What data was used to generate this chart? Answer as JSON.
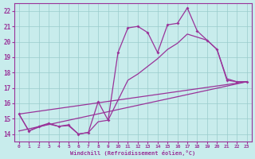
{
  "xlabel": "Windchill (Refroidissement éolien,°C)",
  "bg_color": "#c8ecec",
  "line_color": "#993399",
  "grid_color": "#99cccc",
  "xlim": [
    -0.5,
    23.5
  ],
  "ylim": [
    13.5,
    22.5
  ],
  "xticks": [
    0,
    1,
    2,
    3,
    4,
    5,
    6,
    7,
    8,
    9,
    10,
    11,
    12,
    13,
    14,
    15,
    16,
    17,
    18,
    19,
    20,
    21,
    22,
    23
  ],
  "yticks": [
    14,
    15,
    16,
    17,
    18,
    19,
    20,
    21,
    22
  ],
  "curve_main": [
    15.3,
    14.2,
    14.5,
    14.7,
    14.5,
    14.6,
    14.0,
    14.1,
    16.1,
    14.9,
    19.3,
    20.9,
    21.0,
    20.6,
    19.3,
    21.1,
    21.2,
    22.2,
    20.7,
    20.1,
    19.5,
    17.5,
    17.4,
    17.4
  ],
  "curve_smooth": [
    15.3,
    14.2,
    14.45,
    14.65,
    14.5,
    14.55,
    14.0,
    14.1,
    14.8,
    14.9,
    16.2,
    17.5,
    17.9,
    18.4,
    18.9,
    19.5,
    19.9,
    20.5,
    20.3,
    20.1,
    19.5,
    17.6,
    17.4,
    17.4
  ],
  "trend1_x": [
    0,
    23
  ],
  "trend1_y": [
    15.3,
    17.4
  ],
  "trend2_x": [
    0,
    23
  ],
  "trend2_y": [
    14.2,
    17.4
  ]
}
